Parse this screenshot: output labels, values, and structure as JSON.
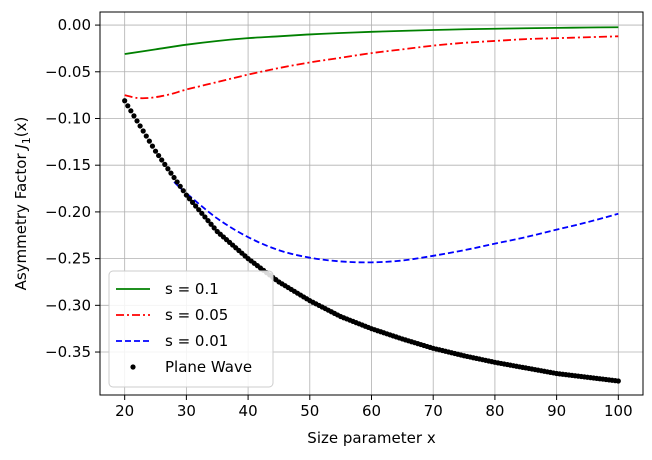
{
  "chart_data": {
    "type": "line",
    "title": "",
    "xlabel": "Size parameter x",
    "ylabel": "Asymmetry Factor J₁(x)",
    "ylabel_text": "Asymmetry Factor ",
    "ylabel_math_main": "J",
    "ylabel_math_sub": "1",
    "ylabel_math_tail": "(x)",
    "xlim": [
      16,
      104
    ],
    "ylim": [
      -0.396,
      0.014
    ],
    "xticks": [
      20,
      30,
      40,
      50,
      60,
      70,
      80,
      90,
      100
    ],
    "yticks": [
      0.0,
      -0.05,
      -0.1,
      -0.15,
      -0.2,
      -0.25,
      -0.3,
      -0.35
    ],
    "ytick_labels": [
      "0.00",
      "−0.05",
      "−0.10",
      "−0.15",
      "−0.20",
      "−0.25",
      "−0.30",
      "−0.35"
    ],
    "grid": true,
    "legend_position": "lower-left",
    "series": [
      {
        "name": "s = 0.1",
        "color": "#008000",
        "style": "solid",
        "marker": "none",
        "x": [
          20,
          25,
          30,
          35,
          40,
          45,
          50,
          55,
          60,
          65,
          70,
          75,
          80,
          85,
          90,
          95,
          100
        ],
        "y": [
          -0.031,
          -0.026,
          -0.021,
          -0.017,
          -0.014,
          -0.012,
          -0.01,
          -0.0085,
          -0.0072,
          -0.0062,
          -0.0053,
          -0.0045,
          -0.0039,
          -0.0034,
          -0.003,
          -0.0026,
          -0.0023
        ]
      },
      {
        "name": "s = 0.05",
        "color": "#ff0000",
        "style": "dashdot",
        "marker": "none",
        "x": [
          20,
          22,
          24,
          26,
          28,
          30,
          35,
          40,
          45,
          50,
          55,
          60,
          65,
          70,
          75,
          80,
          85,
          90,
          95,
          100
        ],
        "y": [
          -0.075,
          -0.078,
          -0.078,
          -0.076,
          -0.073,
          -0.069,
          -0.061,
          -0.053,
          -0.046,
          -0.04,
          -0.035,
          -0.03,
          -0.026,
          -0.022,
          -0.019,
          -0.017,
          -0.015,
          -0.014,
          -0.013,
          -0.012
        ]
      },
      {
        "name": "s = 0.01",
        "color": "#0000ff",
        "style": "dashed",
        "marker": "none",
        "x": [
          28,
          30,
          35,
          40,
          45,
          50,
          55,
          60,
          65,
          70,
          75,
          80,
          85,
          90,
          95,
          100
        ],
        "y": [
          -0.168,
          -0.18,
          -0.207,
          -0.227,
          -0.241,
          -0.249,
          -0.253,
          -0.254,
          -0.252,
          -0.247,
          -0.241,
          -0.234,
          -0.227,
          -0.219,
          -0.211,
          -0.202
        ]
      },
      {
        "name": "Plane Wave",
        "color": "#000000",
        "style": "none",
        "marker": "dot",
        "x": [
          20,
          25,
          30,
          35,
          40,
          45,
          50,
          55,
          60,
          65,
          70,
          75,
          80,
          85,
          90,
          95,
          100
        ],
        "y": [
          -0.081,
          -0.135,
          -0.182,
          -0.221,
          -0.25,
          -0.275,
          -0.295,
          -0.312,
          -0.325,
          -0.336,
          -0.346,
          -0.354,
          -0.361,
          -0.367,
          -0.373,
          -0.377,
          -0.381
        ]
      }
    ]
  }
}
